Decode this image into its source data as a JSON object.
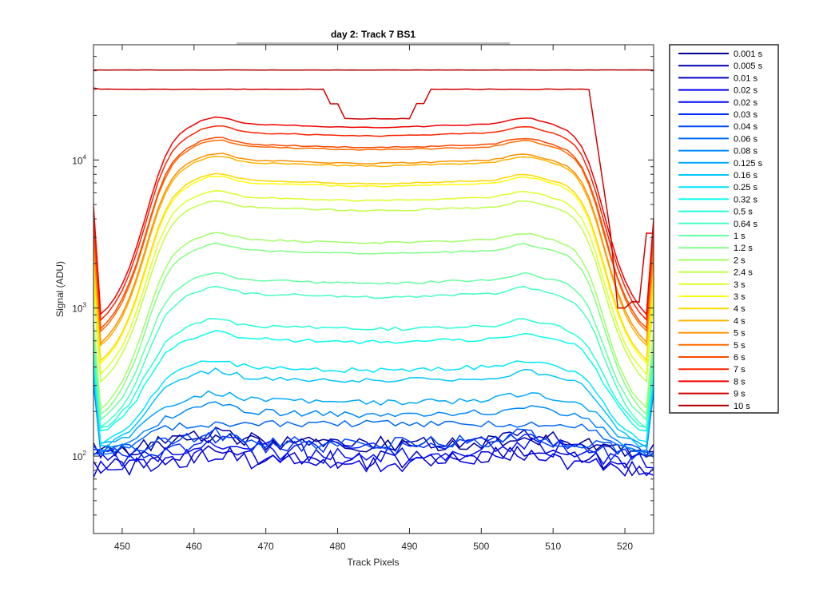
{
  "chart_data": {
    "type": "line",
    "title": "day 2: Track 7  BS1",
    "xlabel": "Track Pixels",
    "ylabel": "Signal (ADU)",
    "xlim": [
      446,
      524
    ],
    "ylim": [
      30,
      60000
    ],
    "yscale": "log",
    "grid": false,
    "legend_position": "outside-right",
    "x_ticks": [
      450,
      460,
      470,
      480,
      490,
      500,
      510,
      520
    ],
    "y_ticks": [
      {
        "value": 100,
        "base": "10",
        "exp": "2"
      },
      {
        "value": 1000,
        "base": "10",
        "exp": "3"
      },
      {
        "value": 10000,
        "base": "10",
        "exp": "4"
      }
    ],
    "series": [
      {
        "name": "0.001 s",
        "color": "#00008f",
        "plateau": 125,
        "dip": 0,
        "noise": 0.12,
        "edge": 1.0
      },
      {
        "name": "0.005 s",
        "color": "#0000ae",
        "plateau": 130,
        "dip": 0,
        "noise": 0.12,
        "edge": 1.0
      },
      {
        "name": "0.01 s",
        "color": "#0000cd",
        "plateau": 100,
        "dip": 0,
        "noise": 0.14,
        "edge": 0.5
      },
      {
        "name": "0.02 s",
        "color": "#0000ed",
        "plateau": 95,
        "dip": 0,
        "noise": 0.14,
        "edge": 0.5
      },
      {
        "name": "0.02 s",
        "color": "#000cff",
        "plateau": 110,
        "dip": 0,
        "noise": 0.14,
        "edge": 0.55
      },
      {
        "name": "0.03 s",
        "color": "#002bff",
        "plateau": 120,
        "dip": 0,
        "noise": 0.12,
        "edge": 0.6
      },
      {
        "name": "0.04 s",
        "color": "#004aff",
        "plateau": 128,
        "dip": 0,
        "noise": 0.1,
        "edge": 0.7
      },
      {
        "name": "0.06 s",
        "color": "#0069ff",
        "plateau": 165,
        "dip": 0.6,
        "noise": 0.06,
        "edge": 0.5
      },
      {
        "name": "0.08 s",
        "color": "#0088ff",
        "plateau": 200,
        "dip": 0.5,
        "noise": 0.05,
        "edge": 0.5
      },
      {
        "name": "0.125 s",
        "color": "#00a8ff",
        "plateau": 240,
        "dip": 0.45,
        "noise": 0.05,
        "edge": 0.5
      },
      {
        "name": "0.16 s",
        "color": "#00c6ff",
        "plateau": 340,
        "dip": 0.3,
        "noise": 0.04,
        "edge": 0.5
      },
      {
        "name": "0.25 s",
        "color": "#00e6ff",
        "plateau": 400,
        "dip": 0.27,
        "noise": 0.04,
        "edge": 0.5
      },
      {
        "name": "0.32 s",
        "color": "#06ffed",
        "plateau": 620,
        "dip": 0.2,
        "noise": 0.03,
        "edge": 0.5
      },
      {
        "name": "0.5 s",
        "color": "#25ffd9",
        "plateau": 760,
        "dip": 0.17,
        "noise": 0.03,
        "edge": 0.5
      },
      {
        "name": "0.64 s",
        "color": "#44ffbf",
        "plateau": 1250,
        "dip": 0.1,
        "noise": 0.02,
        "edge": 0.5
      },
      {
        "name": "1 s",
        "color": "#63ffa4",
        "plateau": 1550,
        "dip": 0.09,
        "noise": 0.02,
        "edge": 0.5
      },
      {
        "name": "1.2 s",
        "color": "#82ff85",
        "plateau": 2450,
        "dip": 0.06,
        "noise": 0.015,
        "edge": 0.5
      },
      {
        "name": "2 s",
        "color": "#a1ff66",
        "plateau": 2900,
        "dip": 0.055,
        "noise": 0.015,
        "edge": 0.5
      },
      {
        "name": "2.4 s",
        "color": "#c0ff47",
        "plateau": 4800,
        "dip": 0.05,
        "noise": 0.012,
        "edge": 0.5
      },
      {
        "name": "3 s",
        "color": "#e0ff28",
        "plateau": 5600,
        "dip": 0.048,
        "noise": 0.012,
        "edge": 0.5
      },
      {
        "name": "3 s",
        "color": "#ffff0a",
        "plateau": 7000,
        "dip": 0.045,
        "noise": 0.01,
        "edge": 0.5
      },
      {
        "name": "4 s",
        "color": "#ffd800",
        "plateau": 7300,
        "dip": 0.045,
        "noise": 0.01,
        "edge": 0.5
      },
      {
        "name": "4 s",
        "color": "#ffb300",
        "plateau": 9600,
        "dip": 0.043,
        "noise": 0.01,
        "edge": 0.5
      },
      {
        "name": "5 s",
        "color": "#ff9000",
        "plateau": 10000,
        "dip": 0.043,
        "noise": 0.01,
        "edge": 0.5
      },
      {
        "name": "5 s",
        "color": "#ff6b00",
        "plateau": 12300,
        "dip": 0.042,
        "noise": 0.01,
        "edge": 0.5
      },
      {
        "name": "6 s",
        "color": "#ff4800",
        "plateau": 12800,
        "dip": 0.042,
        "noise": 0.01,
        "edge": 0.5
      },
      {
        "name": "7 s",
        "color": "#ff2200",
        "plateau": 15300,
        "dip": 0.04,
        "noise": 0.008,
        "edge": 0.5
      },
      {
        "name": "8 s",
        "color": "#f40000",
        "plateau": 17500,
        "dip": 0.038,
        "noise": 0.008,
        "edge": 0.5
      },
      {
        "name": "9 s",
        "color": "#d20000",
        "plateau": 30000,
        "dip": 0.033,
        "noise": 0.005,
        "edge": 0.5
      },
      {
        "name": "10 s",
        "color": "#b00000",
        "plateau": 40500,
        "dip": 1.0,
        "noise": 0.002,
        "edge": 1.0
      }
    ]
  }
}
